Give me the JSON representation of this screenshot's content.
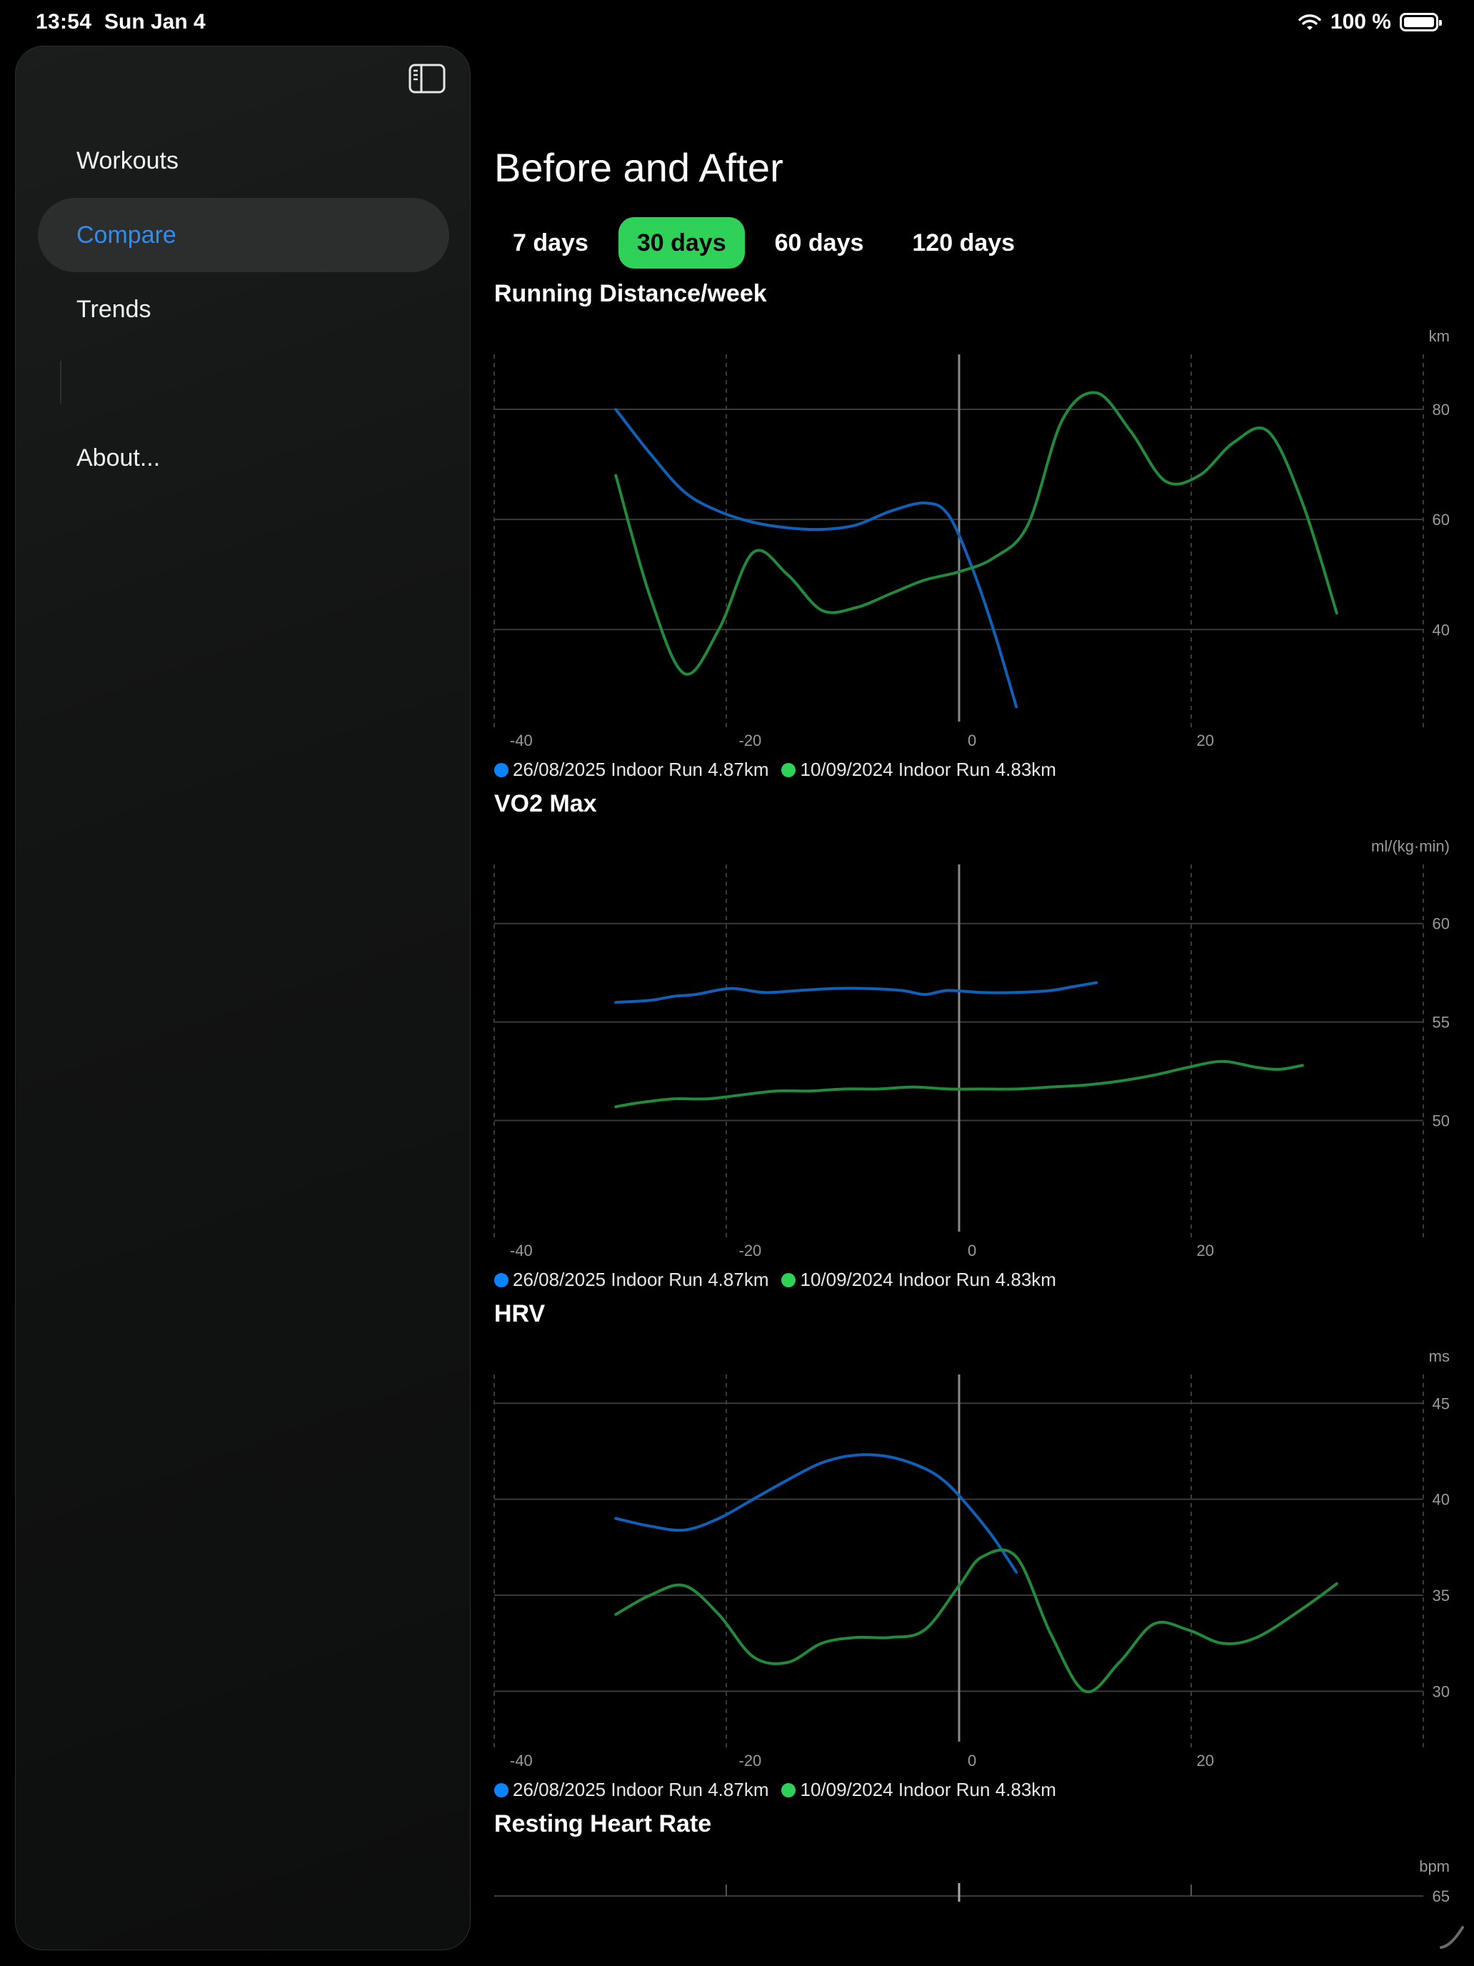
{
  "status_bar": {
    "time": "13:54",
    "date": "Sun Jan 4",
    "battery": "100 %"
  },
  "sidebar": {
    "items": [
      {
        "label": "Workouts",
        "active": false
      },
      {
        "label": "Compare",
        "active": true
      },
      {
        "label": "Trends",
        "active": false
      },
      {
        "label": "About...",
        "active": false
      }
    ]
  },
  "main": {
    "title": "Before and After",
    "tabs": [
      {
        "label": "7 days",
        "active": false
      },
      {
        "label": "30 days",
        "active": true
      },
      {
        "label": "60 days",
        "active": false
      },
      {
        "label": "120 days",
        "active": false
      }
    ]
  },
  "colors": {
    "series_a": "#0a84ff",
    "series_b": "#30d158",
    "active_tab": "#30d158",
    "active_nav": "#2f8cf0"
  },
  "chart_data": [
    {
      "type": "line",
      "title": "Running Distance/week",
      "unit": "km",
      "xticks": [
        -40,
        -20,
        0,
        20
      ],
      "yticks": [
        40,
        60,
        80
      ],
      "xlim": [
        -40,
        40
      ],
      "ylim": [
        22,
        90
      ],
      "grid": true,
      "legend": "bottom-left",
      "series": [
        {
          "name": "26/08/2025 Indoor Run 4.87km",
          "color": "#0a84ff",
          "x": [
            -30,
            -27,
            -24,
            -21,
            -18,
            -15,
            -12,
            -9,
            -6,
            -3,
            -1,
            1,
            3,
            5
          ],
          "y": [
            80,
            72,
            65,
            61.5,
            59.5,
            58.5,
            58.2,
            59,
            61.5,
            63,
            61,
            52,
            40,
            26
          ]
        },
        {
          "name": "10/09/2024 Indoor Run 4.83km",
          "color": "#30d158",
          "x": [
            -30,
            -27,
            -24,
            -21,
            -18,
            -15,
            -12,
            -9,
            -6,
            -3,
            0,
            3,
            6,
            9,
            12,
            15,
            18,
            21,
            24,
            27,
            30,
            33
          ],
          "y": [
            68,
            46,
            32,
            40,
            54,
            50,
            43.5,
            44,
            46.5,
            49,
            50.5,
            53,
            59,
            78,
            83,
            76,
            67,
            68,
            74,
            76,
            63,
            43
          ]
        }
      ]
    },
    {
      "type": "line",
      "title": "VO2 Max",
      "unit": "ml/(kg·min)",
      "xticks": [
        -40,
        -20,
        0,
        20
      ],
      "yticks": [
        50,
        55,
        60
      ],
      "xlim": [
        -40,
        40
      ],
      "ylim": [
        44,
        63
      ],
      "grid": true,
      "legend": "bottom-left",
      "series": [
        {
          "name": "26/08/2025 Indoor Run 4.87km",
          "color": "#0a84ff",
          "x": [
            -30,
            -27,
            -25,
            -23,
            -20,
            -17,
            -14,
            -11,
            -8,
            -5,
            -3,
            -1,
            2,
            5,
            8,
            10,
            12
          ],
          "y": [
            56,
            56.1,
            56.3,
            56.4,
            56.7,
            56.5,
            56.6,
            56.7,
            56.7,
            56.6,
            56.4,
            56.6,
            56.5,
            56.5,
            56.6,
            56.8,
            57
          ]
        },
        {
          "name": "10/09/2024 Indoor Run 4.83km",
          "color": "#30d158",
          "x": [
            -30,
            -28,
            -25,
            -22,
            -19,
            -16,
            -13,
            -10,
            -7,
            -4,
            -1,
            2,
            5,
            8,
            11,
            14,
            17,
            20,
            23,
            26,
            28,
            30
          ],
          "y": [
            50.7,
            50.9,
            51.1,
            51.1,
            51.3,
            51.5,
            51.5,
            51.6,
            51.6,
            51.7,
            51.6,
            51.6,
            51.6,
            51.7,
            51.8,
            52,
            52.3,
            52.7,
            53,
            52.7,
            52.6,
            52.8
          ]
        }
      ]
    },
    {
      "type": "line",
      "title": "HRV",
      "unit": "ms",
      "xticks": [
        -40,
        -20,
        0,
        20
      ],
      "yticks": [
        30,
        35,
        40,
        45
      ],
      "xlim": [
        -40,
        40
      ],
      "ylim": [
        27,
        46.5
      ],
      "grid": true,
      "legend": "bottom-left",
      "series": [
        {
          "name": "26/08/2025 Indoor Run 4.87km",
          "color": "#0a84ff",
          "x": [
            -30,
            -27,
            -24,
            -21,
            -18,
            -15,
            -12,
            -9,
            -6,
            -3,
            -1,
            1,
            3,
            5
          ],
          "y": [
            39,
            38.6,
            38.4,
            39,
            40,
            41,
            41.9,
            42.3,
            42.2,
            41.6,
            40.8,
            39.5,
            38,
            36.2
          ]
        },
        {
          "name": "10/09/2024 Indoor Run 4.83km",
          "color": "#30d158",
          "x": [
            -30,
            -27,
            -24,
            -21,
            -18,
            -15,
            -12,
            -9,
            -6,
            -3,
            0,
            2,
            5,
            8,
            11,
            14,
            17,
            20,
            23,
            26,
            30,
            33
          ],
          "y": [
            34,
            35,
            35.5,
            34,
            31.8,
            31.5,
            32.5,
            32.8,
            32.8,
            33.2,
            35.5,
            37,
            37,
            33,
            30,
            31.5,
            33.5,
            33.2,
            32.5,
            32.8,
            34.3,
            35.6
          ]
        }
      ]
    },
    {
      "type": "line",
      "title": "Resting Heart Rate",
      "unit": "bpm",
      "xticks": [],
      "yticks": [
        65
      ],
      "grid": true,
      "series": []
    }
  ]
}
